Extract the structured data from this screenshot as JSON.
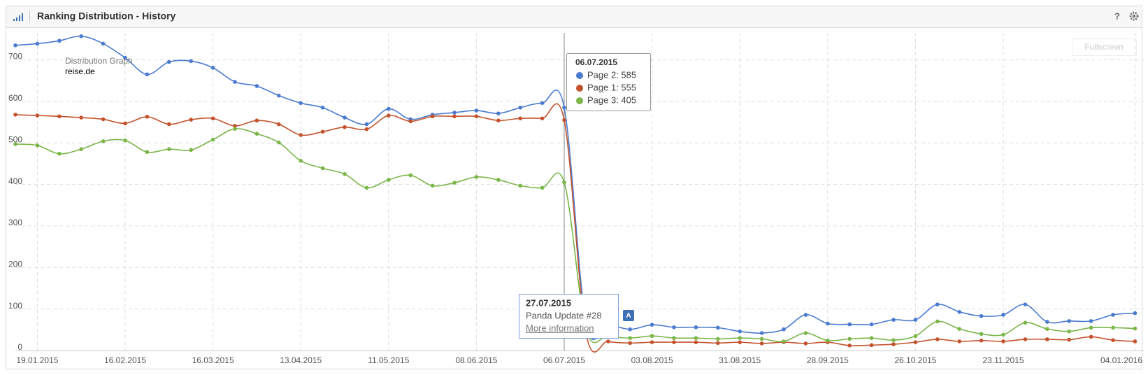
{
  "header": {
    "title": "Ranking Distribution - History",
    "help": "?"
  },
  "fullscreen": "Fullscreen",
  "chart_data": {
    "type": "line",
    "legend": {
      "title": "Distribution Graph",
      "domain": "reise.de"
    },
    "categories": [
      null,
      "19.01.2015",
      null,
      null,
      null,
      "16.02.2015",
      null,
      null,
      null,
      "16.03.2015",
      null,
      null,
      null,
      "13.04.2015",
      null,
      null,
      null,
      "11.05.2015",
      null,
      null,
      null,
      "08.06.2015",
      null,
      null,
      null,
      "06.07.2015",
      null,
      null,
      null,
      "03.08.2015",
      null,
      null,
      null,
      "31.08.2015",
      null,
      null,
      null,
      "28.09.2015",
      null,
      null,
      null,
      "26.10.2015",
      null,
      null,
      null,
      "23.11.2015",
      null,
      null,
      null,
      null,
      null,
      "04.01.2016"
    ],
    "series": [
      {
        "name": "Page 2",
        "color": "#4a7bd0",
        "values": [
          735,
          739,
          746,
          757,
          739,
          705,
          665,
          695,
          697,
          681,
          647,
          637,
          614,
          596,
          585,
          561,
          545,
          582,
          557,
          568,
          573,
          578,
          571,
          585,
          596,
          585,
          65,
          63,
          51,
          62,
          56,
          56,
          55,
          46,
          42,
          51,
          86,
          65,
          63,
          63,
          74,
          74,
          111,
          93,
          83,
          86,
          111,
          69,
          71,
          71,
          86,
          90
        ]
      },
      {
        "name": "Page 1",
        "color": "#c4532d",
        "values": [
          568,
          566,
          564,
          561,
          557,
          547,
          563,
          545,
          556,
          559,
          541,
          554,
          545,
          519,
          527,
          538,
          533,
          566,
          552,
          564,
          564,
          564,
          554,
          559,
          559,
          555,
          40,
          22,
          18,
          20,
          20,
          20,
          18,
          20,
          17,
          20,
          17,
          20,
          12,
          13,
          15,
          20,
          27,
          22,
          24,
          22,
          27,
          27,
          26,
          33,
          25,
          22
        ]
      },
      {
        "name": "Page 3",
        "color": "#7ab648",
        "values": [
          497,
          494,
          474,
          485,
          504,
          506,
          478,
          485,
          483,
          508,
          534,
          522,
          501,
          457,
          439,
          425,
          392,
          411,
          422,
          397,
          404,
          418,
          411,
          397,
          392,
          405,
          50,
          35,
          30,
          35,
          30,
          30,
          28,
          30,
          28,
          22,
          42,
          24,
          28,
          30,
          25,
          35,
          70,
          52,
          40,
          38,
          67,
          52,
          46,
          55,
          55,
          53
        ]
      }
    ],
    "ylim": [
      0,
      765
    ],
    "yticks": [
      0,
      100,
      200,
      300,
      400,
      500,
      600,
      700
    ],
    "grid": true,
    "tooltip": {
      "title": "06.07.2015",
      "items": [
        {
          "text": "Page 2: 585",
          "color": "#4a7bd0"
        },
        {
          "text": "Page 1: 555",
          "color": "#c4532d"
        },
        {
          "text": "Page 3: 405",
          "color": "#7ab648"
        }
      ]
    },
    "annotation": {
      "flag": "A",
      "date": "27.07.2015",
      "text": "Panda Update #28",
      "link": "More information"
    }
  }
}
